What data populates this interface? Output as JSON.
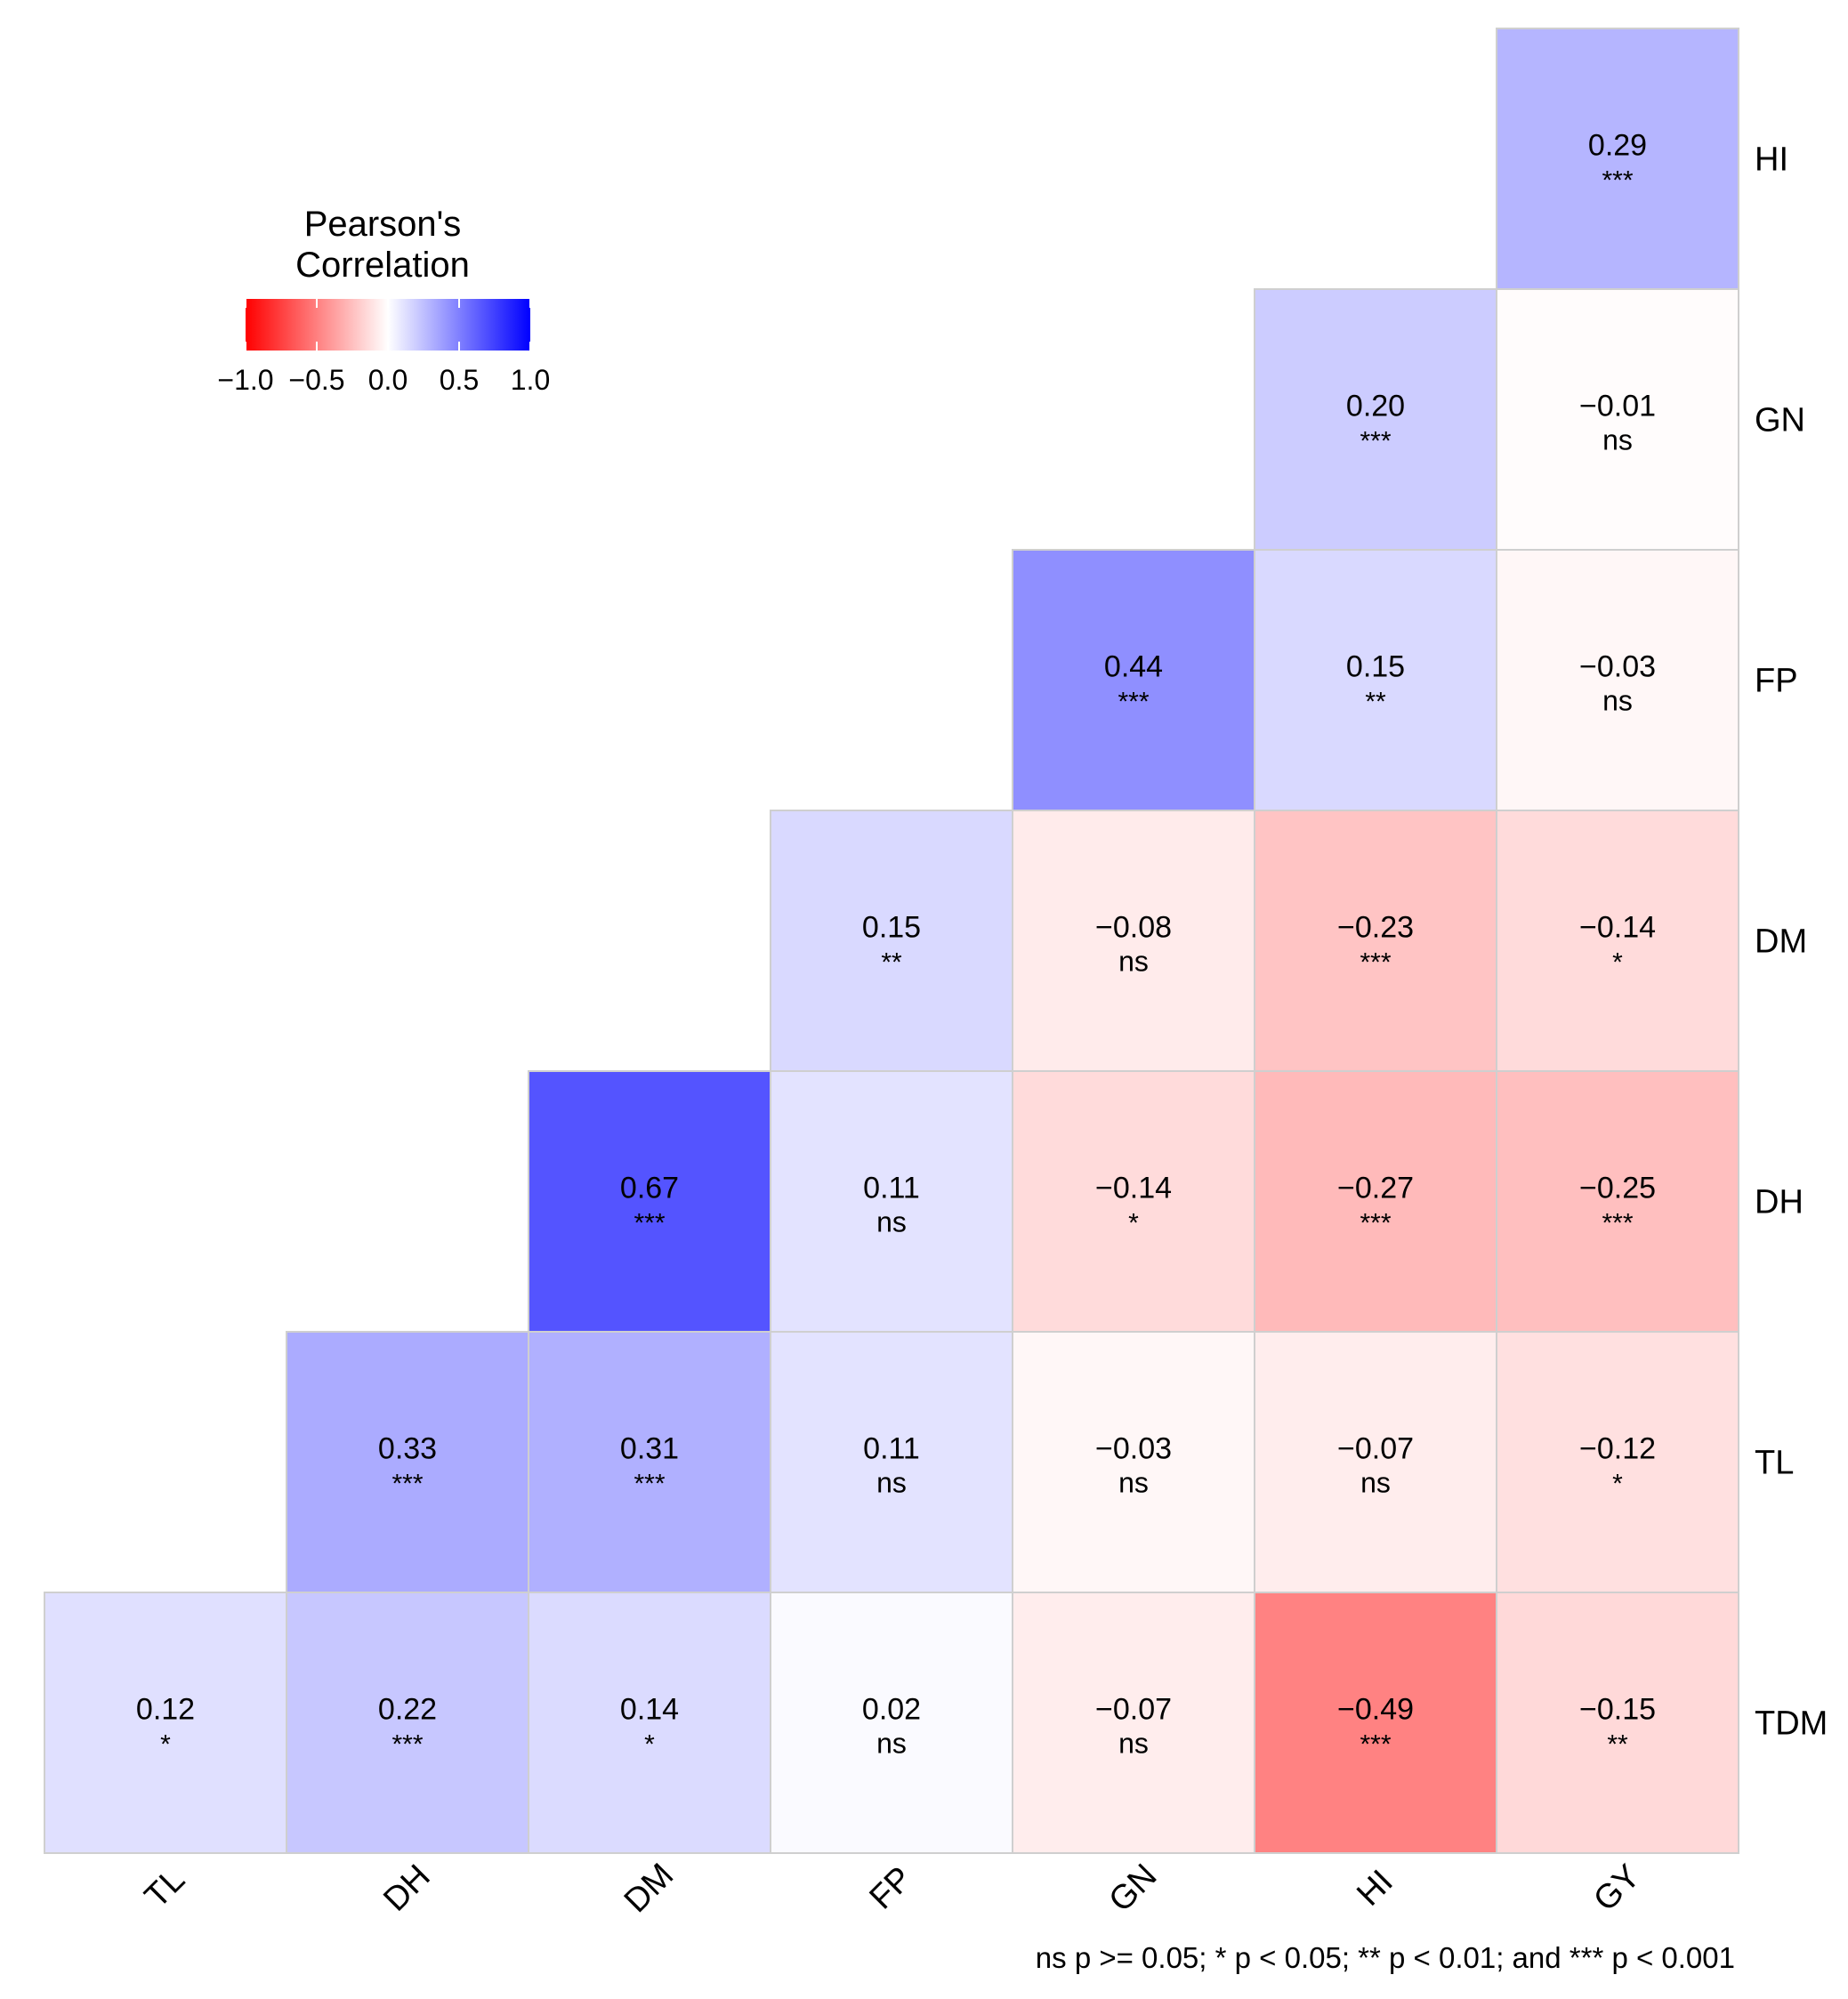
{
  "chart_data": {
    "type": "heatmap",
    "subtype": "lower-triangular correlation matrix",
    "row_labels": [
      "HI",
      "GN",
      "FP",
      "DM",
      "DH",
      "TL",
      "TDM"
    ],
    "col_labels": [
      "TL",
      "DH",
      "DM",
      "FP",
      "GN",
      "HI",
      "GY"
    ],
    "cells": [
      {
        "row": "HI",
        "col": "GY",
        "value": 0.29,
        "label": "0.29",
        "sig": "***"
      },
      {
        "row": "GN",
        "col": "HI",
        "value": 0.2,
        "label": "0.20",
        "sig": "***"
      },
      {
        "row": "GN",
        "col": "GY",
        "value": -0.01,
        "label": "−0.01",
        "sig": "ns"
      },
      {
        "row": "FP",
        "col": "GN",
        "value": 0.44,
        "label": "0.44",
        "sig": "***"
      },
      {
        "row": "FP",
        "col": "HI",
        "value": 0.15,
        "label": "0.15",
        "sig": "**"
      },
      {
        "row": "FP",
        "col": "GY",
        "value": -0.03,
        "label": "−0.03",
        "sig": "ns"
      },
      {
        "row": "DM",
        "col": "FP",
        "value": 0.15,
        "label": "0.15",
        "sig": "**"
      },
      {
        "row": "DM",
        "col": "GN",
        "value": -0.08,
        "label": "−0.08",
        "sig": "ns"
      },
      {
        "row": "DM",
        "col": "HI",
        "value": -0.23,
        "label": "−0.23",
        "sig": "***"
      },
      {
        "row": "DM",
        "col": "GY",
        "value": -0.14,
        "label": "−0.14",
        "sig": "*"
      },
      {
        "row": "DH",
        "col": "DM",
        "value": 0.67,
        "label": "0.67",
        "sig": "***"
      },
      {
        "row": "DH",
        "col": "FP",
        "value": 0.11,
        "label": "0.11",
        "sig": "ns"
      },
      {
        "row": "DH",
        "col": "GN",
        "value": -0.14,
        "label": "−0.14",
        "sig": "*"
      },
      {
        "row": "DH",
        "col": "HI",
        "value": -0.27,
        "label": "−0.27",
        "sig": "***"
      },
      {
        "row": "DH",
        "col": "GY",
        "value": -0.25,
        "label": "−0.25",
        "sig": "***"
      },
      {
        "row": "TL",
        "col": "DH",
        "value": 0.33,
        "label": "0.33",
        "sig": "***"
      },
      {
        "row": "TL",
        "col": "DM",
        "value": 0.31,
        "label": "0.31",
        "sig": "***"
      },
      {
        "row": "TL",
        "col": "FP",
        "value": 0.11,
        "label": "0.11",
        "sig": "ns"
      },
      {
        "row": "TL",
        "col": "GN",
        "value": -0.03,
        "label": "−0.03",
        "sig": "ns"
      },
      {
        "row": "TL",
        "col": "HI",
        "value": -0.07,
        "label": "−0.07",
        "sig": "ns"
      },
      {
        "row": "TL",
        "col": "GY",
        "value": -0.12,
        "label": "−0.12",
        "sig": "*"
      },
      {
        "row": "TDM",
        "col": "TL",
        "value": 0.12,
        "label": "0.12",
        "sig": "*"
      },
      {
        "row": "TDM",
        "col": "DH",
        "value": 0.22,
        "label": "0.22",
        "sig": "***"
      },
      {
        "row": "TDM",
        "col": "DM",
        "value": 0.14,
        "label": "0.14",
        "sig": "*"
      },
      {
        "row": "TDM",
        "col": "FP",
        "value": 0.02,
        "label": "0.02",
        "sig": "ns"
      },
      {
        "row": "TDM",
        "col": "GN",
        "value": -0.07,
        "label": "−0.07",
        "sig": "ns"
      },
      {
        "row": "TDM",
        "col": "HI",
        "value": -0.49,
        "label": "−0.49",
        "sig": "***"
      },
      {
        "row": "TDM",
        "col": "GY",
        "value": -0.15,
        "label": "−0.15",
        "sig": "**"
      }
    ],
    "legend": {
      "title_line1": "Pearson's",
      "title_line2": "Correlation",
      "range": [
        -1.0,
        1.0
      ],
      "ticks": [
        -1.0,
        -0.5,
        0.0,
        0.5,
        1.0
      ],
      "tick_labels": [
        "−1.0",
        "−0.5",
        "0.0",
        "0.5",
        "1.0"
      ],
      "colors": {
        "low": "#ff0000",
        "mid": "#ffffff",
        "high": "#0000ff"
      },
      "placement": "top-left"
    },
    "footnote": "ns p >= 0.05; * p < 0.05; ** p < 0.01; and *** p < 0.001"
  }
}
